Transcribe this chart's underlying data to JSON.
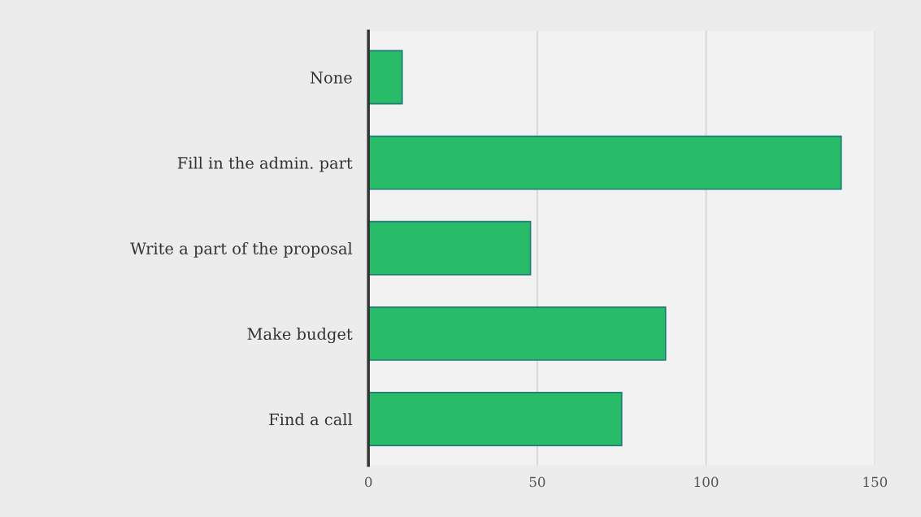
{
  "chart_data": {
    "type": "bar",
    "orientation": "horizontal",
    "categories": [
      "None",
      "Fill in the admin. part",
      "Write a part of the proposal",
      "Make budget",
      "Find a call"
    ],
    "values": [
      10,
      140,
      48,
      88,
      75
    ],
    "color": "#28bb68",
    "xlim": [
      0,
      150
    ],
    "xticks": [
      0,
      50,
      100,
      150
    ],
    "grid": "x",
    "legend": false
  }
}
